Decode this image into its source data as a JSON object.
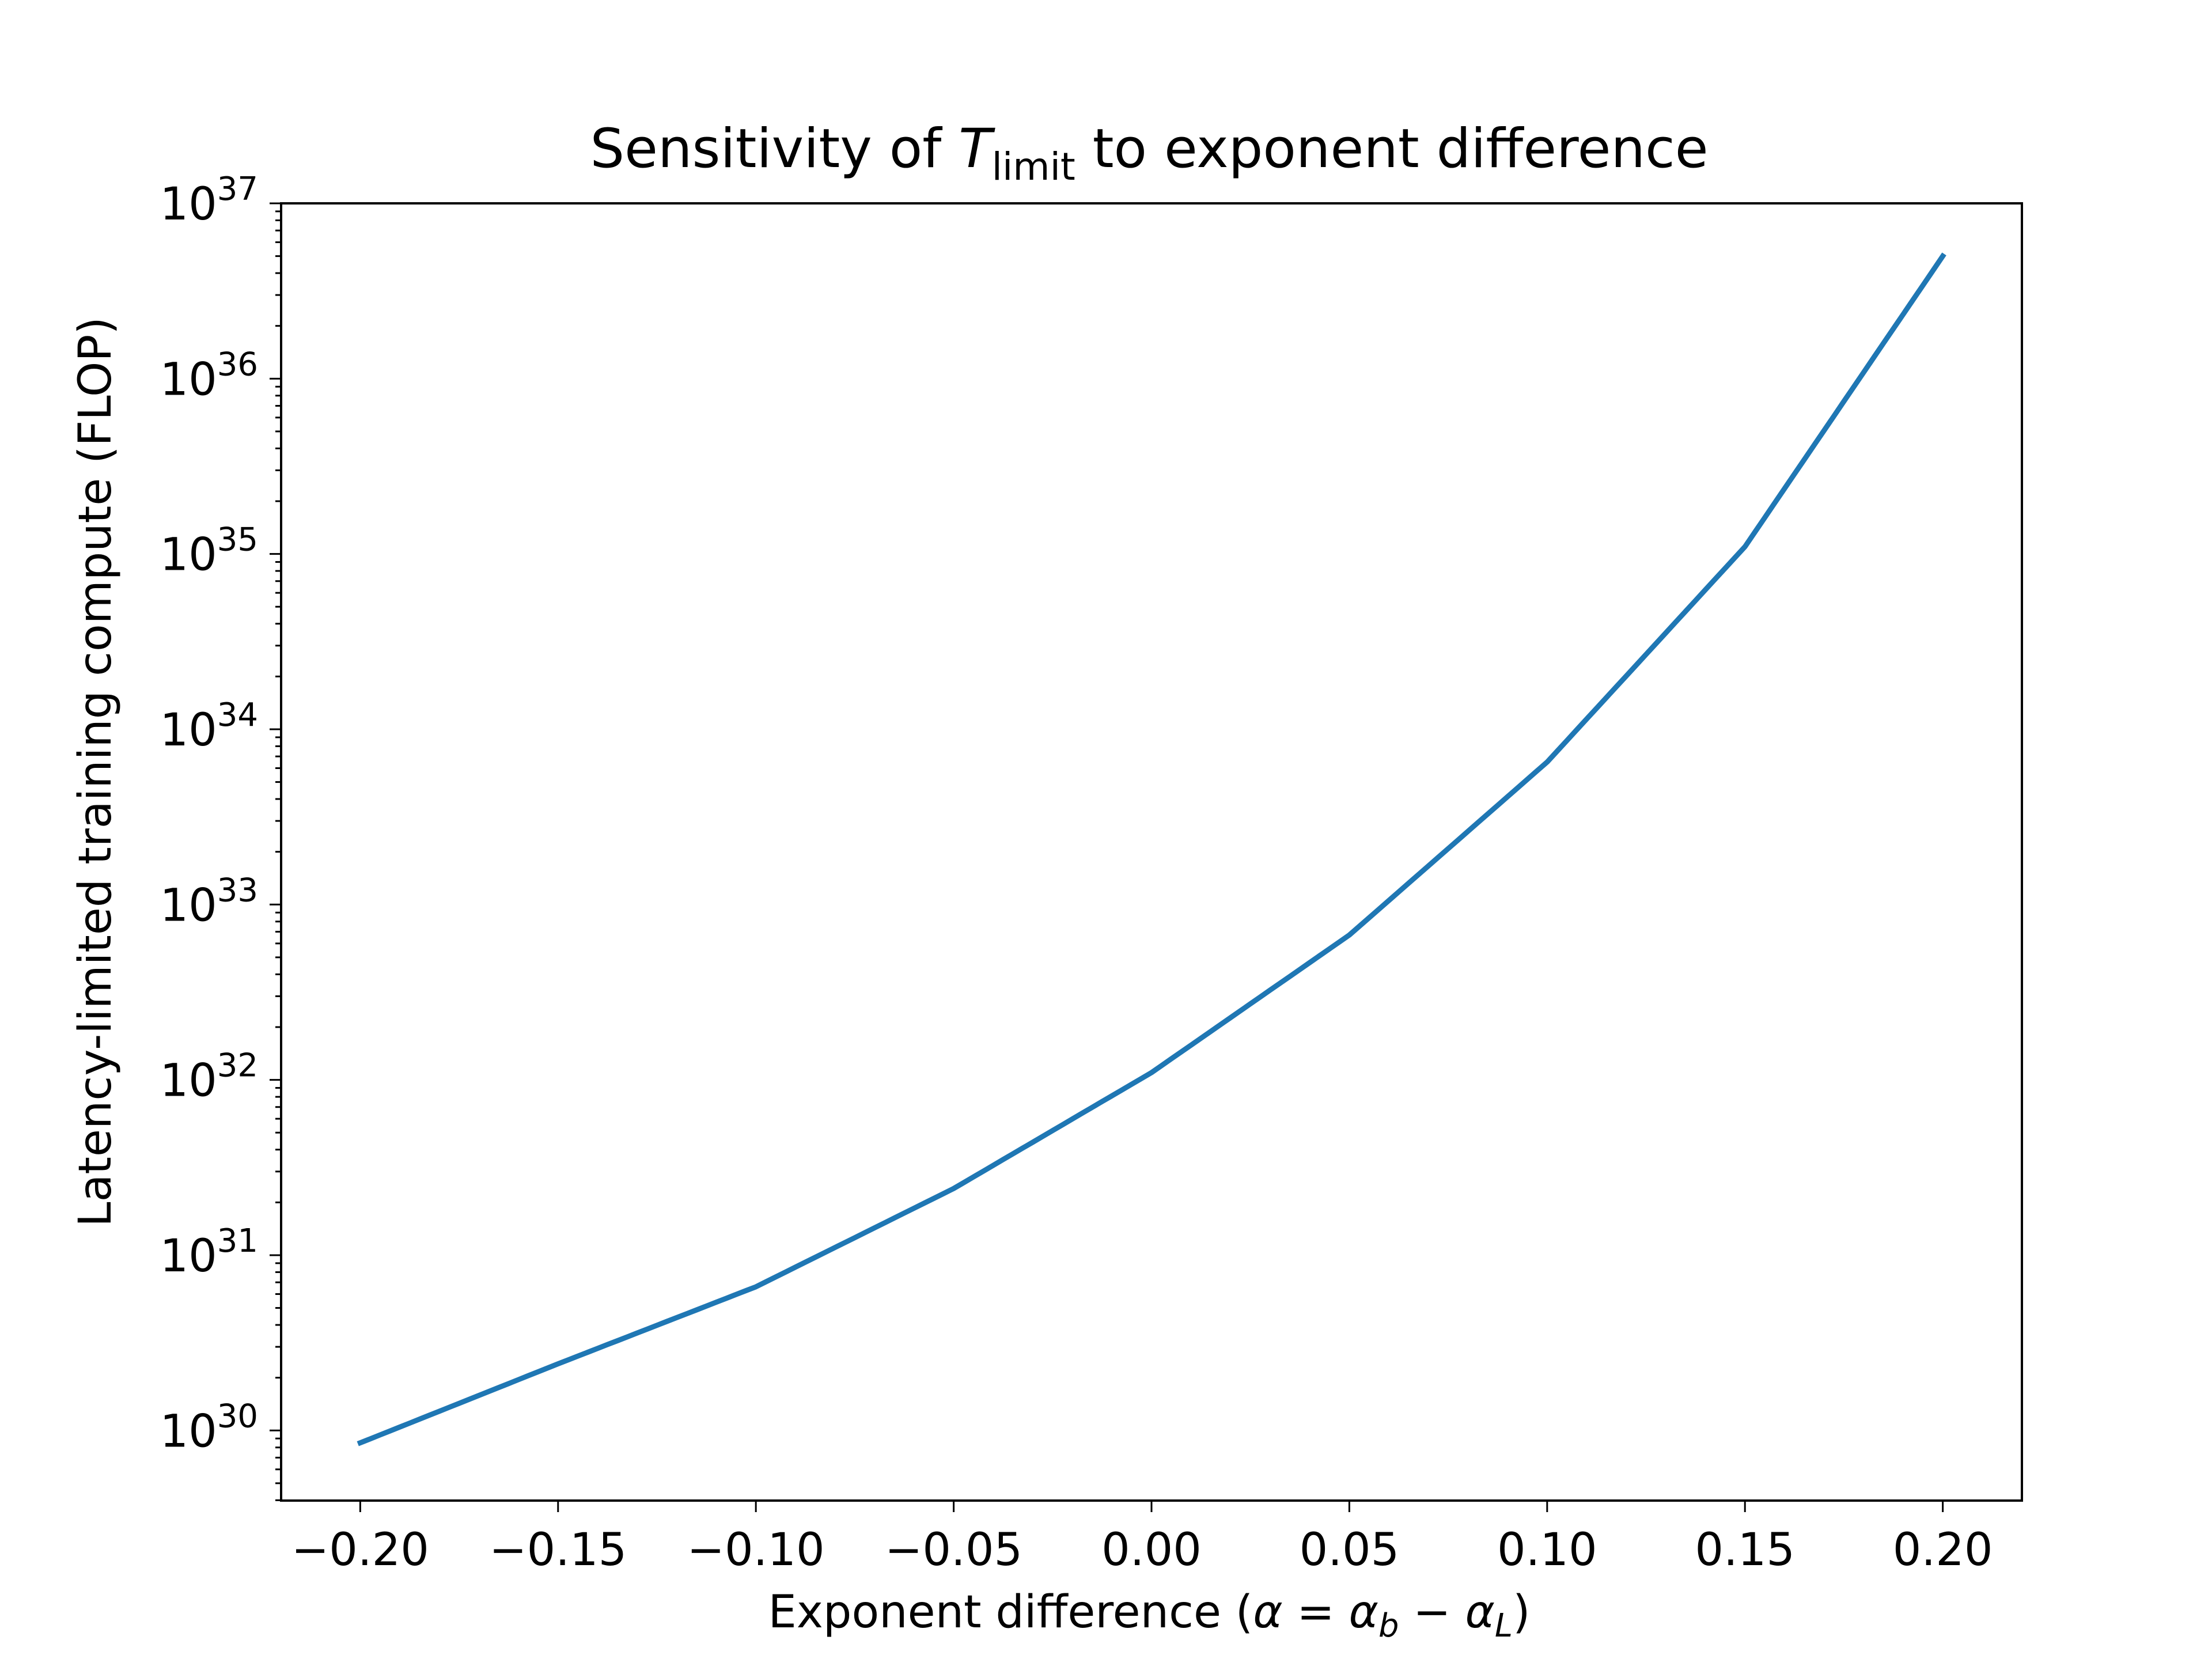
{
  "chart_data": {
    "type": "line",
    "title": {
      "prefix": "Sensitivity of ",
      "math_var": "T",
      "math_sub": "limit",
      "suffix": " to exponent difference"
    },
    "xlabel": {
      "prefix": "Exponent difference (",
      "math": "α = α",
      "sub1": "b",
      "mid": " − α",
      "sub2": "L",
      "suffix": ")"
    },
    "ylabel": "Latency-limited training compute (FLOP)",
    "xlim": [
      -0.22,
      0.22
    ],
    "ylim_log10": [
      29.6,
      37.0
    ],
    "yscale": "log",
    "grid": false,
    "x_ticks": [
      -0.2,
      -0.15,
      -0.1,
      -0.05,
      0.0,
      0.05,
      0.1,
      0.15,
      0.2
    ],
    "x_tick_labels": [
      "−0.20",
      "−0.15",
      "−0.10",
      "−0.05",
      "0.00",
      "0.05",
      "0.10",
      "0.15",
      "0.20"
    ],
    "y_ticks": [
      {
        "base": "10",
        "exp": "30",
        "value": 1e+30
      },
      {
        "base": "10",
        "exp": "31",
        "value": 1e+31
      },
      {
        "base": "10",
        "exp": "32",
        "value": 1e+32
      },
      {
        "base": "10",
        "exp": "33",
        "value": 1e+33
      },
      {
        "base": "10",
        "exp": "34",
        "value": 1e+34
      },
      {
        "base": "10",
        "exp": "35",
        "value": 1e+35
      },
      {
        "base": "10",
        "exp": "36",
        "value": 1e+36
      },
      {
        "base": "10",
        "exp": "37",
        "value": 1e+37
      }
    ],
    "series": [
      {
        "color": "#1f77b4",
        "x": [
          -0.2,
          -0.15,
          -0.1,
          -0.05,
          0.0,
          0.05,
          0.1,
          0.15,
          0.2
        ],
        "y": [
          8.5e+29,
          2.4e+30,
          6.6e+30,
          2.4e+31,
          1.1e+32,
          6.7e+32,
          6.5e+33,
          1.1e+35,
          5e+36
        ]
      }
    ]
  }
}
